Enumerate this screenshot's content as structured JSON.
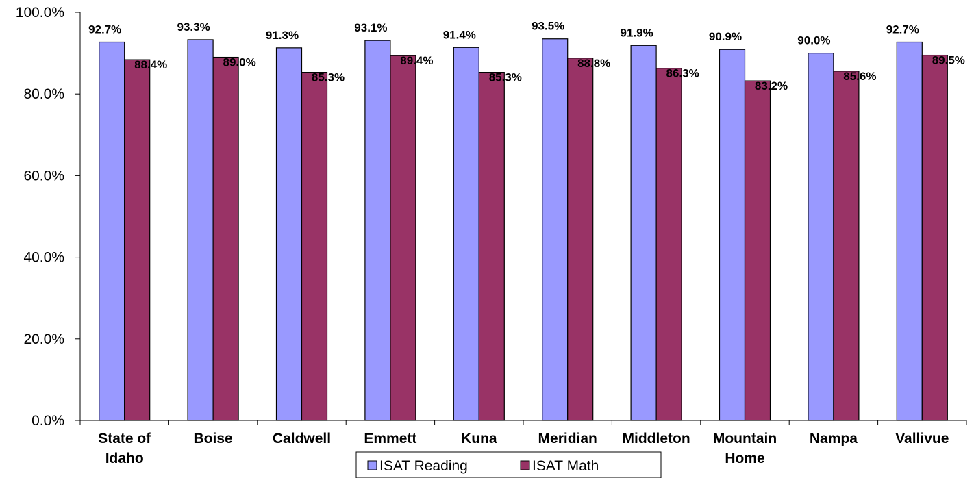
{
  "chart_data": {
    "type": "bar",
    "categories": [
      "State of Idaho",
      "Boise",
      "Caldwell",
      "Emmett",
      "Kuna",
      "Meridian",
      "Middleton",
      "Mountain Home",
      "Nampa",
      "Vallivue"
    ],
    "category_lines": [
      [
        "State of",
        "Idaho"
      ],
      [
        "Boise"
      ],
      [
        "Caldwell"
      ],
      [
        "Emmett"
      ],
      [
        "Kuna"
      ],
      [
        "Meridian"
      ],
      [
        "Middleton"
      ],
      [
        "Mountain",
        "Home"
      ],
      [
        "Nampa"
      ],
      [
        "Vallivue"
      ]
    ],
    "series": [
      {
        "name": "ISAT Reading",
        "color": "#9999FF",
        "values": [
          92.7,
          93.3,
          91.3,
          93.1,
          91.4,
          93.5,
          91.9,
          90.9,
          90.0,
          92.7
        ],
        "labels": [
          "92.7%",
          "93.3%",
          "91.3%",
          "93.1%",
          "91.4%",
          "93.5%",
          "91.9%",
          "90.9%",
          "90.0%",
          "92.7%"
        ]
      },
      {
        "name": "ISAT Math",
        "color": "#993366",
        "values": [
          88.4,
          89.0,
          85.3,
          89.4,
          85.3,
          88.8,
          86.3,
          83.2,
          85.6,
          89.5
        ],
        "labels": [
          "88.4%",
          "89.0%",
          "85.3%",
          "89.4%",
          "85.3%",
          "88.8%",
          "86.3%",
          "83.2%",
          "85.6%",
          "89.5%"
        ]
      }
    ],
    "ylim": [
      0,
      100
    ],
    "y_ticks": [
      0,
      20,
      40,
      60,
      80,
      100
    ],
    "y_tick_labels": [
      "0.0%",
      "20.0%",
      "40.0%",
      "60.0%",
      "80.0%",
      "100.0%"
    ],
    "grid": false,
    "legend_position": "bottom-center",
    "title": "",
    "xlabel": "",
    "ylabel": ""
  }
}
